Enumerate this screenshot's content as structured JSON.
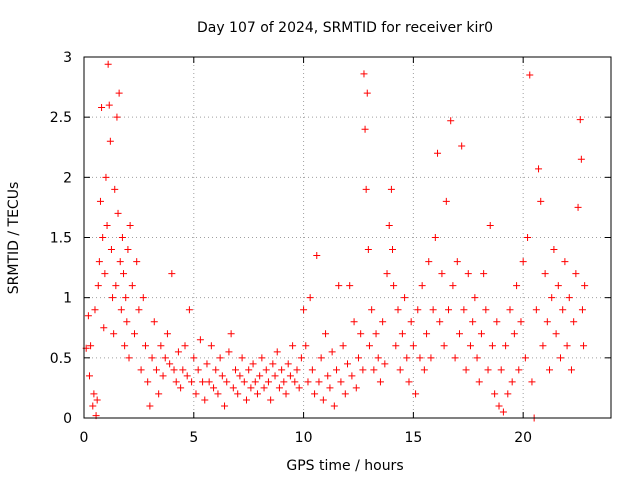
{
  "chart_data": {
    "type": "scatter",
    "title": "Day 107 of 2024, SRMTID for receiver kir0",
    "xlabel": "GPS time / hours",
    "ylabel": "SRMTID / TECUs",
    "xlim": [
      0,
      24
    ],
    "ylim": [
      0,
      3
    ],
    "xticks": [
      0,
      5,
      10,
      15,
      20
    ],
    "xtick_labels": [
      "0",
      "5",
      "10",
      "15",
      "20"
    ],
    "yticks": [
      0,
      0.5,
      1,
      1.5,
      2,
      2.5,
      3
    ],
    "ytick_labels": [
      "0",
      "0.5",
      "1",
      "1.5",
      "2",
      "2.5",
      "3"
    ],
    "grid": true,
    "marker": "plus",
    "series": [
      {
        "name": "SRMTID",
        "color": "#ff0000",
        "points": [
          [
            0.1,
            0.58
          ],
          [
            0.2,
            0.85
          ],
          [
            0.25,
            0.35
          ],
          [
            0.3,
            0.6
          ],
          [
            0.4,
            0.1
          ],
          [
            0.45,
            0.2
          ],
          [
            0.5,
            0.9
          ],
          [
            0.55,
            0.02
          ],
          [
            0.6,
            0.15
          ],
          [
            0.65,
            1.1
          ],
          [
            0.7,
            1.3
          ],
          [
            0.75,
            1.8
          ],
          [
            0.8,
            2.58
          ],
          [
            0.85,
            1.5
          ],
          [
            0.9,
            0.75
          ],
          [
            0.95,
            1.2
          ],
          [
            1.0,
            2.0
          ],
          [
            1.05,
            1.6
          ],
          [
            1.1,
            2.94
          ],
          [
            1.15,
            2.6
          ],
          [
            1.2,
            2.3
          ],
          [
            1.25,
            1.4
          ],
          [
            1.3,
            1.0
          ],
          [
            1.35,
            0.7
          ],
          [
            1.4,
            1.9
          ],
          [
            1.45,
            1.1
          ],
          [
            1.5,
            2.5
          ],
          [
            1.55,
            1.7
          ],
          [
            1.6,
            2.7
          ],
          [
            1.65,
            1.3
          ],
          [
            1.7,
            0.9
          ],
          [
            1.75,
            1.5
          ],
          [
            1.8,
            1.2
          ],
          [
            1.85,
            0.6
          ],
          [
            1.9,
            1.0
          ],
          [
            1.95,
            0.8
          ],
          [
            2.0,
            1.4
          ],
          [
            2.05,
            0.5
          ],
          [
            2.1,
            1.6
          ],
          [
            2.2,
            1.1
          ],
          [
            2.3,
            0.7
          ],
          [
            2.4,
            1.3
          ],
          [
            2.5,
            0.9
          ],
          [
            2.6,
            0.4
          ],
          [
            2.7,
            1.0
          ],
          [
            2.8,
            0.6
          ],
          [
            2.9,
            0.3
          ],
          [
            3.0,
            0.1
          ],
          [
            3.1,
            0.5
          ],
          [
            3.2,
            0.8
          ],
          [
            3.3,
            0.4
          ],
          [
            3.4,
            0.2
          ],
          [
            3.5,
            0.6
          ],
          [
            3.6,
            0.35
          ],
          [
            3.7,
            0.5
          ],
          [
            3.8,
            0.7
          ],
          [
            3.9,
            0.45
          ],
          [
            4.0,
            1.2
          ],
          [
            4.1,
            0.4
          ],
          [
            4.2,
            0.3
          ],
          [
            4.3,
            0.55
          ],
          [
            4.4,
            0.25
          ],
          [
            4.5,
            0.4
          ],
          [
            4.6,
            0.6
          ],
          [
            4.7,
            0.35
          ],
          [
            4.8,
            0.9
          ],
          [
            4.9,
            0.3
          ],
          [
            5.0,
            0.5
          ],
          [
            5.1,
            0.2
          ],
          [
            5.2,
            0.4
          ],
          [
            5.3,
            0.65
          ],
          [
            5.4,
            0.3
          ],
          [
            5.5,
            0.15
          ],
          [
            5.6,
            0.45
          ],
          [
            5.7,
            0.3
          ],
          [
            5.8,
            0.6
          ],
          [
            5.9,
            0.25
          ],
          [
            6.0,
            0.4
          ],
          [
            6.1,
            0.2
          ],
          [
            6.2,
            0.5
          ],
          [
            6.3,
            0.35
          ],
          [
            6.4,
            0.1
          ],
          [
            6.5,
            0.3
          ],
          [
            6.6,
            0.55
          ],
          [
            6.7,
            0.7
          ],
          [
            6.8,
            0.25
          ],
          [
            6.9,
            0.4
          ],
          [
            7.0,
            0.2
          ],
          [
            7.1,
            0.35
          ],
          [
            7.2,
            0.5
          ],
          [
            7.3,
            0.3
          ],
          [
            7.4,
            0.15
          ],
          [
            7.5,
            0.4
          ],
          [
            7.6,
            0.25
          ],
          [
            7.7,
            0.45
          ],
          [
            7.8,
            0.3
          ],
          [
            7.9,
            0.2
          ],
          [
            8.0,
            0.35
          ],
          [
            8.1,
            0.5
          ],
          [
            8.2,
            0.25
          ],
          [
            8.3,
            0.4
          ],
          [
            8.4,
            0.3
          ],
          [
            8.5,
            0.15
          ],
          [
            8.6,
            0.45
          ],
          [
            8.7,
            0.35
          ],
          [
            8.8,
            0.55
          ],
          [
            8.9,
            0.25
          ],
          [
            9.0,
            0.4
          ],
          [
            9.1,
            0.3
          ],
          [
            9.2,
            0.2
          ],
          [
            9.3,
            0.45
          ],
          [
            9.4,
            0.35
          ],
          [
            9.5,
            0.6
          ],
          [
            9.6,
            0.3
          ],
          [
            9.7,
            0.4
          ],
          [
            9.8,
            0.25
          ],
          [
            9.9,
            0.5
          ],
          [
            10.0,
            0.9
          ],
          [
            10.1,
            0.6
          ],
          [
            10.2,
            0.3
          ],
          [
            10.3,
            1.0
          ],
          [
            10.4,
            0.4
          ],
          [
            10.5,
            0.2
          ],
          [
            10.6,
            1.35
          ],
          [
            10.7,
            0.3
          ],
          [
            10.8,
            0.5
          ],
          [
            10.9,
            0.15
          ],
          [
            11.0,
            0.7
          ],
          [
            11.1,
            0.35
          ],
          [
            11.2,
            0.25
          ],
          [
            11.3,
            0.55
          ],
          [
            11.4,
            0.1
          ],
          [
            11.5,
            0.4
          ],
          [
            11.6,
            1.1
          ],
          [
            11.7,
            0.3
          ],
          [
            11.8,
            0.6
          ],
          [
            11.9,
            0.2
          ],
          [
            12.0,
            0.45
          ],
          [
            12.1,
            1.1
          ],
          [
            12.2,
            0.35
          ],
          [
            12.3,
            0.8
          ],
          [
            12.4,
            0.25
          ],
          [
            12.5,
            0.5
          ],
          [
            12.6,
            0.7
          ],
          [
            12.7,
            0.4
          ],
          [
            12.75,
            2.86
          ],
          [
            12.8,
            2.4
          ],
          [
            12.85,
            1.9
          ],
          [
            12.9,
            2.7
          ],
          [
            12.95,
            1.4
          ],
          [
            13.0,
            0.6
          ],
          [
            13.1,
            0.9
          ],
          [
            13.2,
            0.4
          ],
          [
            13.3,
            0.7
          ],
          [
            13.4,
            0.5
          ],
          [
            13.5,
            0.3
          ],
          [
            13.6,
            0.8
          ],
          [
            13.7,
            0.45
          ],
          [
            13.8,
            1.2
          ],
          [
            13.9,
            1.6
          ],
          [
            14.0,
            1.9
          ],
          [
            14.05,
            1.4
          ],
          [
            14.1,
            1.1
          ],
          [
            14.2,
            0.6
          ],
          [
            14.3,
            0.9
          ],
          [
            14.4,
            0.4
          ],
          [
            14.5,
            0.7
          ],
          [
            14.6,
            1.0
          ],
          [
            14.7,
            0.5
          ],
          [
            14.8,
            0.3
          ],
          [
            14.9,
            0.8
          ],
          [
            15.0,
            0.6
          ],
          [
            15.1,
            0.2
          ],
          [
            15.2,
            0.9
          ],
          [
            15.3,
            0.5
          ],
          [
            15.4,
            1.1
          ],
          [
            15.5,
            0.4
          ],
          [
            15.6,
            0.7
          ],
          [
            15.7,
            1.3
          ],
          [
            15.8,
            0.5
          ],
          [
            15.9,
            0.9
          ],
          [
            16.0,
            1.5
          ],
          [
            16.1,
            2.2
          ],
          [
            16.2,
            0.8
          ],
          [
            16.3,
            1.2
          ],
          [
            16.4,
            0.6
          ],
          [
            16.5,
            1.8
          ],
          [
            16.6,
            0.9
          ],
          [
            16.7,
            2.47
          ],
          [
            16.8,
            1.1
          ],
          [
            16.9,
            0.5
          ],
          [
            17.0,
            1.3
          ],
          [
            17.1,
            0.7
          ],
          [
            17.2,
            2.26
          ],
          [
            17.3,
            0.9
          ],
          [
            17.4,
            0.4
          ],
          [
            17.5,
            1.2
          ],
          [
            17.6,
            0.6
          ],
          [
            17.7,
            0.8
          ],
          [
            17.8,
            1.0
          ],
          [
            17.9,
            0.5
          ],
          [
            18.0,
            0.3
          ],
          [
            18.1,
            0.7
          ],
          [
            18.2,
            1.2
          ],
          [
            18.3,
            0.9
          ],
          [
            18.4,
            0.4
          ],
          [
            18.5,
            1.6
          ],
          [
            18.6,
            0.6
          ],
          [
            18.7,
            0.2
          ],
          [
            18.8,
            0.8
          ],
          [
            18.9,
            0.1
          ],
          [
            19.0,
            0.4
          ],
          [
            19.1,
            0.05
          ],
          [
            19.2,
            0.6
          ],
          [
            19.3,
            0.2
          ],
          [
            19.4,
            0.9
          ],
          [
            19.5,
            0.3
          ],
          [
            19.6,
            0.7
          ],
          [
            19.7,
            1.1
          ],
          [
            19.8,
            0.4
          ],
          [
            19.9,
            0.8
          ],
          [
            20.0,
            1.3
          ],
          [
            20.1,
            0.5
          ],
          [
            20.2,
            1.5
          ],
          [
            20.3,
            2.85
          ],
          [
            20.4,
            0.3
          ],
          [
            20.5,
            0.0
          ],
          [
            20.6,
            0.9
          ],
          [
            20.7,
            2.07
          ],
          [
            20.8,
            1.8
          ],
          [
            20.9,
            0.6
          ],
          [
            21.0,
            1.2
          ],
          [
            21.1,
            0.8
          ],
          [
            21.2,
            0.4
          ],
          [
            21.3,
            1.0
          ],
          [
            21.4,
            1.4
          ],
          [
            21.5,
            0.7
          ],
          [
            21.6,
            1.1
          ],
          [
            21.7,
            0.5
          ],
          [
            21.8,
            0.9
          ],
          [
            21.9,
            1.3
          ],
          [
            22.0,
            0.6
          ],
          [
            22.1,
            1.0
          ],
          [
            22.2,
            0.4
          ],
          [
            22.3,
            0.8
          ],
          [
            22.4,
            1.2
          ],
          [
            22.5,
            1.75
          ],
          [
            22.6,
            2.48
          ],
          [
            22.65,
            2.15
          ],
          [
            22.7,
            0.9
          ],
          [
            22.75,
            0.6
          ],
          [
            22.8,
            1.1
          ]
        ]
      }
    ]
  }
}
